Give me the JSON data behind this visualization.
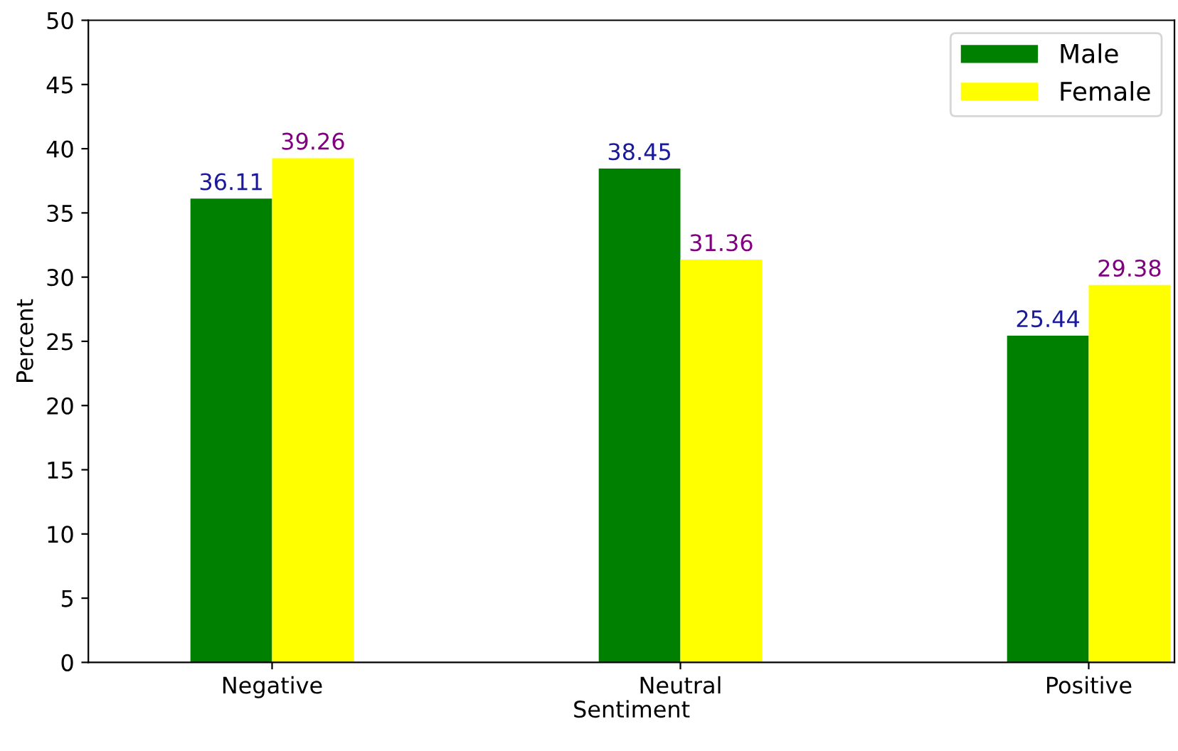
{
  "chart_data": {
    "type": "bar",
    "xlabel": "Sentiment",
    "ylabel": "Percent",
    "categories": [
      "Negative",
      "Neutral",
      "Positive"
    ],
    "series": [
      {
        "name": "Male",
        "color": "#008000",
        "values": [
          36.11,
          38.45,
          25.44
        ]
      },
      {
        "name": "Female",
        "color": "#ffff00",
        "values": [
          39.26,
          31.36,
          29.38
        ]
      }
    ],
    "ylim": [
      0,
      50
    ],
    "yticks": [
      0,
      5,
      10,
      15,
      20,
      25,
      30,
      35,
      40,
      45,
      50
    ],
    "data_labels": true,
    "legend": "top right",
    "grid": false
  }
}
